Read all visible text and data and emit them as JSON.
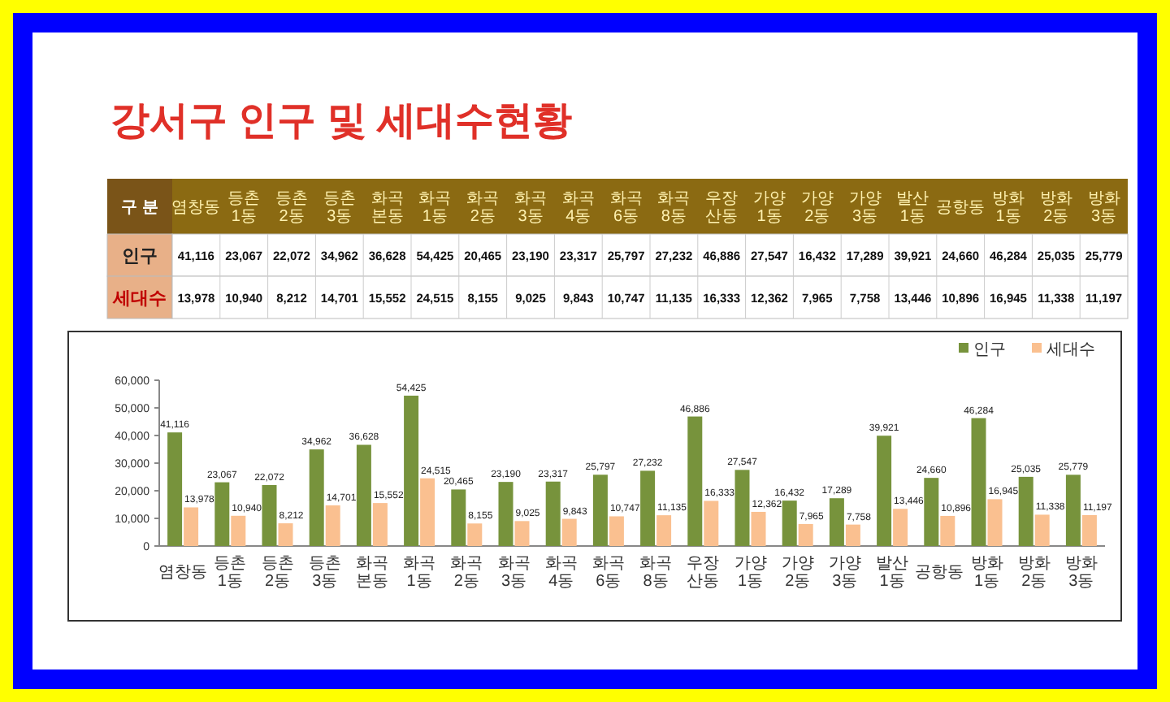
{
  "chart_data": {
    "type": "bar",
    "title": "강서구 인구 및 세대수현황",
    "categories": [
      "염창동",
      "등촌1동",
      "등촌2동",
      "등촌3동",
      "화곡본동",
      "화곡1동",
      "화곡2동",
      "화곡3동",
      "화곡4동",
      "화곡6동",
      "화곡8동",
      "우장산동",
      "가양1동",
      "가양2동",
      "가양3동",
      "발산1동",
      "공항동",
      "방화1동",
      "방화2동",
      "방화3동"
    ],
    "series": [
      {
        "name": "인구",
        "color": "#77933c",
        "values": [
          41116,
          23067,
          22072,
          34962,
          36628,
          54425,
          20465,
          23190,
          23317,
          25797,
          27232,
          46886,
          27547,
          16432,
          17289,
          39921,
          24660,
          46284,
          25035,
          25779
        ],
        "value_labels": [
          "41,116",
          "23,067",
          "22,072",
          "34,962",
          "36,628",
          "54,425",
          "20,465",
          "23,190",
          "23,317",
          "25,797",
          "27,232",
          "46,886",
          "27,547",
          "16,432",
          "17,289",
          "39,921",
          "24,660",
          "46,284",
          "25,035",
          "25,779"
        ]
      },
      {
        "name": "세대수",
        "color": "#fac090",
        "values": [
          13978,
          10940,
          8212,
          14701,
          15552,
          24515,
          8155,
          9025,
          9843,
          10747,
          11135,
          16333,
          12362,
          7965,
          7758,
          13446,
          10896,
          16945,
          11338,
          11197
        ],
        "value_labels": [
          "13,978",
          "10,940",
          "8,212",
          "14,701",
          "15,552",
          "24,515",
          "8,155",
          "9,025",
          "9,843",
          "10,747",
          "11,135",
          "16,333",
          "12,362",
          "7,965",
          "7,758",
          "13,446",
          "10,896",
          "16,945",
          "11,338",
          "11,197"
        ]
      }
    ],
    "ylim": [
      0,
      60000
    ],
    "yticks": [
      0,
      {
        "value": 10000,
        "label": "10,000"
      },
      {
        "value": 20000,
        "label": "20,000"
      },
      {
        "value": 30000,
        "label": "30,000"
      },
      {
        "value": 40000,
        "label": "40,000"
      },
      {
        "value": 50000,
        "label": "50,000"
      },
      {
        "value": 60000,
        "label": "60,000"
      }
    ],
    "legend": "top right",
    "annotations": [
      "구 분"
    ]
  }
}
